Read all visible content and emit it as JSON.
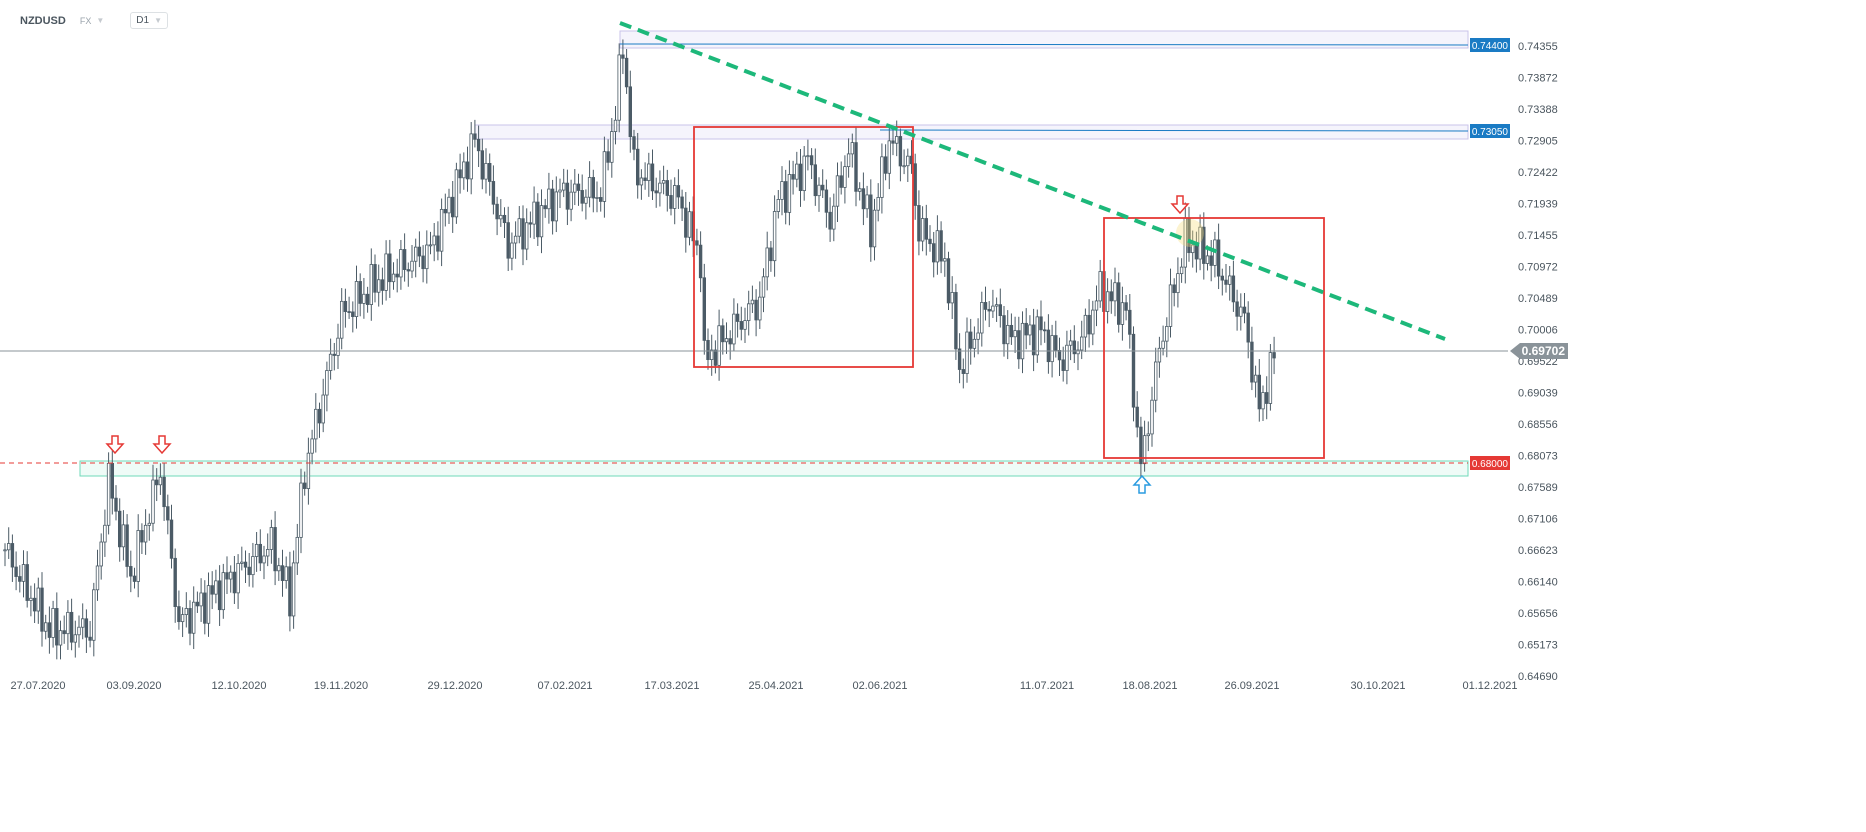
{
  "header": {
    "symbol": "NZDUSD",
    "market": "FX",
    "timeframe": "D1"
  },
  "chart_data": {
    "type": "candlestick",
    "title": "",
    "y_ticks": [
      "0.74355",
      "0.73872",
      "0.73388",
      "0.72905",
      "0.72422",
      "0.71939",
      "0.71455",
      "0.70972",
      "0.70489",
      "0.70006",
      "0.69522",
      "0.69039",
      "0.68556",
      "0.68073",
      "0.67589",
      "0.67106",
      "0.66623",
      "0.66140",
      "0.65656",
      "0.65173",
      "0.64690"
    ],
    "x_ticks": [
      "27.07.2020",
      "03.09.2020",
      "12.10.2020",
      "19.11.2020",
      "29.12.2020",
      "07.02.2021",
      "17.03.2021",
      "25.04.2021",
      "02.06.2021",
      "11.07.2021",
      "18.08.2021",
      "26.09.2021",
      "30.10.2021",
      "01.12.2021"
    ],
    "ylim": [
      0.6459,
      0.7475
    ],
    "price_path_approx": [
      [
        0,
        0.6663
      ],
      [
        12,
        0.654
      ],
      [
        23,
        0.654
      ],
      [
        28,
        0.677
      ],
      [
        34,
        0.662
      ],
      [
        42,
        0.6785
      ],
      [
        47,
        0.655
      ],
      [
        61,
        0.662
      ],
      [
        72,
        0.667
      ],
      [
        77,
        0.659
      ],
      [
        81,
        0.6785
      ],
      [
        91,
        0.7023
      ],
      [
        101,
        0.7077
      ],
      [
        115,
        0.7123
      ],
      [
        127,
        0.7291
      ],
      [
        136,
        0.713
      ],
      [
        150,
        0.721
      ],
      [
        161,
        0.721
      ],
      [
        165,
        0.7337
      ],
      [
        167,
        0.7437
      ],
      [
        170,
        0.7245
      ],
      [
        182,
        0.72
      ],
      [
        188,
        0.711
      ],
      [
        189,
        0.6954
      ],
      [
        199,
        0.7015
      ],
      [
        204,
        0.7046
      ],
      [
        209,
        0.72
      ],
      [
        217,
        0.7261
      ],
      [
        223,
        0.7169
      ],
      [
        228,
        0.7277
      ],
      [
        234,
        0.7154
      ],
      [
        239,
        0.7292
      ],
      [
        245,
        0.7246
      ],
      [
        247,
        0.7154
      ],
      [
        254,
        0.7108
      ],
      [
        258,
        0.694
      ],
      [
        266,
        0.7046
      ],
      [
        272,
        0.6985
      ],
      [
        280,
        0.7
      ],
      [
        285,
        0.6954
      ],
      [
        291,
        0.6985
      ],
      [
        296,
        0.7062
      ],
      [
        303,
        0.7031
      ],
      [
        307,
        0.6788
      ],
      [
        312,
        0.697
      ],
      [
        319,
        0.7138
      ],
      [
        327,
        0.7108
      ],
      [
        335,
        0.7015
      ],
      [
        339,
        0.6877
      ],
      [
        343,
        0.696
      ]
    ],
    "levels": [
      {
        "label": "0.74400",
        "color": "#1a7bc4"
      },
      {
        "label": "0.73050",
        "color": "#1a7bc4"
      },
      {
        "label": "0.68000",
        "color": "#e53935"
      }
    ],
    "last_price": {
      "label": "0.69702",
      "color": "#8a9399"
    },
    "trendline_color": "#1db87a",
    "box_color": "#e53935"
  }
}
